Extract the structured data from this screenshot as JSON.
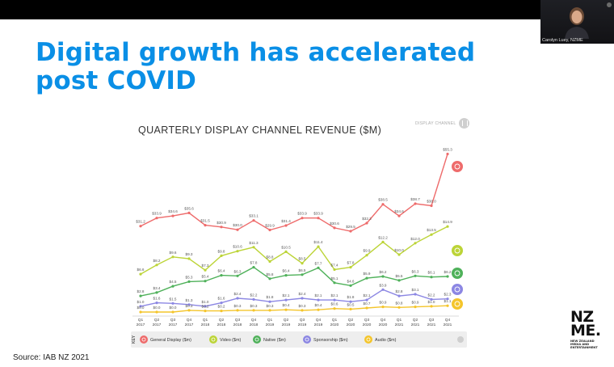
{
  "slide": {
    "title_line1": "Digital growth has accelerated",
    "title_line2": "post COVID",
    "source": "Source: IAB NZ 2021"
  },
  "video_call": {
    "participant_name": "Carolyn Luey, NZME",
    "mic_icon": "mic-icon"
  },
  "logo": {
    "mark_line1": "NZ",
    "mark_line2": "ME.",
    "subtitle": [
      "NEW ZEALAND",
      "MEDIA AND",
      "ENTERTAINMENT"
    ]
  },
  "colors": {
    "title_blue": "#0a8fe6",
    "general_display": "#ee6b6b",
    "video": "#bcd437",
    "native": "#4fb15a",
    "sponsorship": "#8c87e3",
    "audio": "#f4c52b"
  },
  "chart_data": {
    "type": "line",
    "title": "QUARTERLY DISPLAY CHANNEL REVENUE ($M)",
    "badge": "DISPLAY CHANNEL",
    "categories": [
      [
        "Q1",
        "2017"
      ],
      [
        "Q2",
        "2017"
      ],
      [
        "Q3",
        "2017"
      ],
      [
        "Q4",
        "2017"
      ],
      [
        "Q1",
        "2018"
      ],
      [
        "Q2",
        "2018"
      ],
      [
        "Q3",
        "2018"
      ],
      [
        "Q4",
        "2018"
      ],
      [
        "Q1",
        "2019"
      ],
      [
        "Q2",
        "2019"
      ],
      [
        "Q3",
        "2019"
      ],
      [
        "Q4",
        "2019"
      ],
      [
        "Q1",
        "2020"
      ],
      [
        "Q2",
        "2020"
      ],
      [
        "Q3",
        "2020"
      ],
      [
        "Q4",
        "2020"
      ],
      [
        "Q1",
        "2021"
      ],
      [
        "Q2",
        "2021"
      ],
      [
        "Q3",
        "2021"
      ],
      [
        "Q4",
        "2021"
      ]
    ],
    "key_label": "KEY",
    "series": [
      {
        "name": "General Display ($m)",
        "color": "#ee6b6b",
        "icon": "general-display-icon",
        "values": [
          31.2,
          33.9,
          34.6,
          35.6,
          31.5,
          30.9,
          30.0,
          33.1,
          29.9,
          31.4,
          33.9,
          33.9,
          30.6,
          29.5,
          32.2,
          38.5,
          34.6,
          38.7,
          38.0,
          55.3
        ],
        "labels": [
          "$31.2",
          "$33.9",
          "$34.6",
          "$35.6",
          "$31.5",
          "$30.9",
          "$30.0",
          "$33.1",
          "$29.9",
          "$31.4",
          "$33.9",
          "$33.9",
          "$30.6",
          "$29.5",
          "$32.2",
          "$38.5",
          "$34.6",
          "$38.7",
          "$38.0",
          "$55.3"
        ]
      },
      {
        "name": "Video ($m)",
        "color": "#bcd437",
        "icon": "video-icon",
        "values": [
          6.6,
          8.2,
          9.6,
          9.3,
          7.3,
          9.8,
          10.6,
          11.3,
          8.8,
          10.5,
          8.5,
          11.4,
          7.4,
          7.8,
          9.9,
          12.2,
          10.0,
          12.0,
          13.5,
          14.9
        ],
        "labels": [
          "$6.6",
          "$8.2",
          "$9.6",
          "$9.3",
          "$7.3",
          "$9.8",
          "$10.6",
          "$11.3",
          "$8.8",
          "$10.5",
          "$8.5",
          "$11.4",
          "$7.4",
          "$7.8",
          "$9.9",
          "$12.2",
          "$10.0",
          "$12.0",
          "$13.5",
          "$14.9"
        ]
      },
      {
        "name": "Native ($m)",
        "color": "#4fb15a",
        "icon": "native-icon",
        "values": [
          2.8,
          3.4,
          4.5,
          5.3,
          5.4,
          6.4,
          6.3,
          7.8,
          5.8,
          6.4,
          6.5,
          7.7,
          5.1,
          4.6,
          5.9,
          6.2,
          5.5,
          6.3,
          6.1,
          6.2
        ],
        "labels": [
          "$2.8",
          "$3.4",
          "$4.5",
          "$5.3",
          "$5.4",
          "$6.4",
          "$6.3",
          "$7.8",
          "$5.8",
          "$6.4",
          "$6.5",
          "$7.7",
          "$5.1",
          "$4.6",
          "$5.9",
          "$6.2",
          "$5.5",
          "$6.3",
          "$6.1",
          "$6.2"
        ]
      },
      {
        "name": "Sponsorship ($m)",
        "color": "#8c87e3",
        "icon": "sponsorship-icon",
        "values": [
          1.0,
          1.6,
          1.5,
          1.3,
          1.0,
          1.6,
          2.4,
          2.2,
          1.8,
          2.1,
          2.4,
          2.1,
          2.1,
          1.8,
          2.1,
          3.9,
          2.8,
          3.1,
          2.2,
          2.3
        ],
        "labels": [
          "$1.0",
          "$1.6",
          "$1.5",
          "$1.3",
          "$1.0",
          "$1.6",
          "$2.4",
          "$2.2",
          "$1.8",
          "$2.1",
          "$2.4",
          "$2.1",
          "$2.1",
          "$1.8",
          "$2.1",
          "$3.9",
          "$2.8",
          "$3.1",
          "$2.2",
          "$2.3"
        ]
      },
      {
        "name": "Audio ($m)",
        "color": "#f4c52b",
        "icon": "audio-icon",
        "values": [
          0.0,
          0.0,
          0.0,
          0.3,
          0.2,
          0.2,
          0.3,
          0.3,
          0.3,
          0.4,
          0.3,
          0.4,
          0.6,
          0.5,
          0.7,
          0.9,
          0.8,
          0.9,
          1.0,
          1.1
        ],
        "labels": [
          "$0.0",
          "$0.0",
          "$0.0",
          "$0.3",
          "$0.2",
          "$0.2",
          "$0.3",
          "$0.3",
          "$0.3",
          "$0.4",
          "$0.3",
          "$0.4",
          "$0.6",
          "$0.5",
          "$0.7",
          "$0.9",
          "$0.8",
          "$0.9",
          "$1.0",
          "$1.1"
        ]
      }
    ],
    "ylim": [
      0,
      57
    ],
    "grid": false,
    "legend_position": "bottom"
  }
}
